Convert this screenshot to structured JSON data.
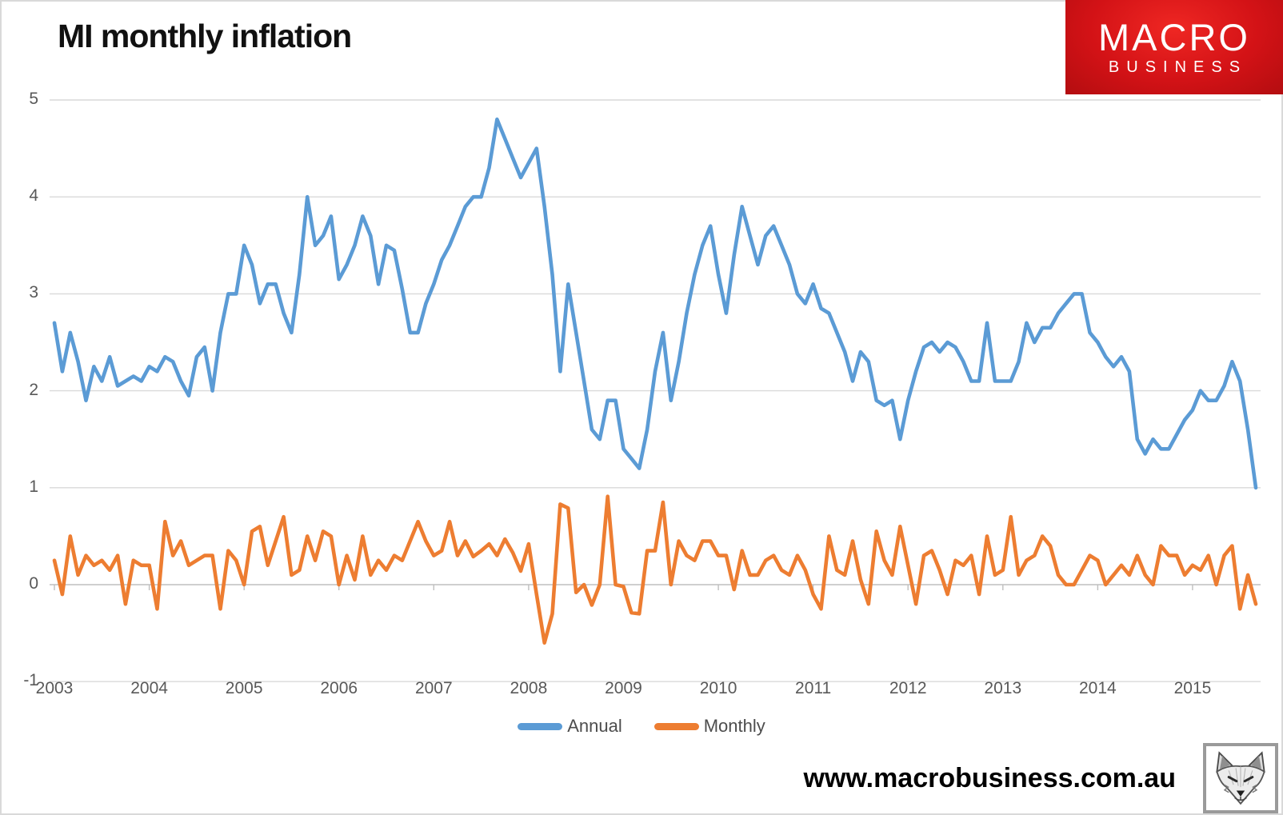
{
  "header": {
    "title": "MI monthly inflation",
    "logo": {
      "line1": "MACRO",
      "line2": "BUSINESS",
      "bg_color": "#d31216",
      "text_color": "#ffffff"
    }
  },
  "footer": {
    "url": "www.macrobusiness.com.au"
  },
  "legend": {
    "items": [
      "Annual",
      "Monthly"
    ]
  },
  "chart_data": {
    "type": "line",
    "title": "MI monthly inflation",
    "xlabel": "",
    "ylabel": "",
    "x_start": "2003-01",
    "x_end": "2015-09",
    "x_frequency": "monthly",
    "x_tick_labels": [
      "2003",
      "2004",
      "2005",
      "2006",
      "2007",
      "2008",
      "2009",
      "2010",
      "2011",
      "2012",
      "2013",
      "2014",
      "2015"
    ],
    "y_ticks": [
      5,
      4,
      3,
      2,
      1,
      0,
      -1
    ],
    "ylim": [
      -1,
      5
    ],
    "grid": true,
    "gridline_color": "#d9d9d9",
    "axis_color": "#bfbfbf",
    "label_color": "#595959",
    "legend_position": "bottom",
    "series": [
      {
        "name": "Annual",
        "color": "#5B9BD5",
        "values": [
          2.7,
          2.2,
          2.6,
          2.3,
          1.9,
          2.25,
          2.1,
          2.35,
          2.05,
          2.1,
          2.15,
          2.1,
          2.25,
          2.2,
          2.35,
          2.3,
          2.1,
          1.95,
          2.35,
          2.45,
          2.0,
          2.6,
          3.0,
          3.0,
          3.5,
          3.3,
          2.9,
          3.1,
          3.1,
          2.8,
          2.6,
          3.2,
          4.0,
          3.5,
          3.6,
          3.8,
          3.15,
          3.3,
          3.5,
          3.8,
          3.6,
          3.1,
          3.5,
          3.45,
          3.05,
          2.6,
          2.6,
          2.9,
          3.1,
          3.35,
          3.5,
          3.7,
          3.9,
          4.0,
          4.0,
          4.3,
          4.8,
          4.6,
          4.4,
          4.2,
          4.35,
          4.5,
          3.9,
          3.2,
          2.2,
          3.1,
          2.6,
          2.1,
          1.6,
          1.5,
          1.9,
          1.9,
          1.4,
          1.3,
          1.2,
          1.6,
          2.2,
          2.6,
          1.9,
          2.3,
          2.8,
          3.2,
          3.5,
          3.7,
          3.2,
          2.8,
          3.4,
          3.9,
          3.6,
          3.3,
          3.6,
          3.7,
          3.5,
          3.3,
          3.0,
          2.9,
          3.1,
          2.85,
          2.8,
          2.6,
          2.4,
          2.1,
          2.4,
          2.3,
          1.9,
          1.85,
          1.9,
          1.5,
          1.9,
          2.2,
          2.45,
          2.5,
          2.4,
          2.5,
          2.45,
          2.3,
          2.1,
          2.1,
          2.7,
          2.1,
          2.1,
          2.1,
          2.3,
          2.7,
          2.5,
          2.65,
          2.65,
          2.8,
          2.9,
          3.0,
          3.0,
          2.6,
          2.5,
          2.35,
          2.25,
          2.35,
          2.2,
          1.5,
          1.35,
          1.5,
          1.4,
          1.4,
          1.55,
          1.7,
          1.8,
          2.0,
          1.9,
          1.9,
          2.05,
          2.3,
          2.1,
          1.6,
          1.0
        ]
      },
      {
        "name": "Monthly",
        "color": "#ED7D31",
        "values": [
          0.25,
          -0.1,
          0.5,
          0.1,
          0.3,
          0.2,
          0.25,
          0.15,
          0.3,
          -0.2,
          0.25,
          0.2,
          0.2,
          -0.25,
          0.65,
          0.3,
          0.45,
          0.2,
          0.25,
          0.3,
          0.3,
          -0.25,
          0.35,
          0.25,
          0.0,
          0.55,
          0.6,
          0.2,
          0.45,
          0.7,
          0.1,
          0.15,
          0.5,
          0.25,
          0.55,
          0.5,
          0.0,
          0.3,
          0.05,
          0.5,
          0.1,
          0.25,
          0.15,
          0.3,
          0.25,
          0.45,
          0.65,
          0.45,
          0.3,
          0.35,
          0.65,
          0.3,
          0.45,
          0.29,
          0.35,
          0.42,
          0.3,
          0.47,
          0.33,
          0.14,
          0.42,
          -0.1,
          -0.6,
          -0.3,
          0.83,
          0.79,
          -0.08,
          0.0,
          -0.21,
          0.0,
          0.91,
          0.0,
          -0.02,
          -0.29,
          -0.3,
          0.35,
          0.35,
          0.85,
          0.0,
          0.45,
          0.3,
          0.25,
          0.45,
          0.45,
          0.3,
          0.3,
          -0.05,
          0.35,
          0.1,
          0.1,
          0.25,
          0.3,
          0.15,
          0.1,
          0.3,
          0.15,
          -0.1,
          -0.25,
          0.5,
          0.15,
          0.1,
          0.45,
          0.05,
          -0.2,
          0.55,
          0.25,
          0.1,
          0.6,
          0.2,
          -0.2,
          0.3,
          0.35,
          0.15,
          -0.1,
          0.25,
          0.2,
          0.3,
          -0.1,
          0.5,
          0.1,
          0.15,
          0.7,
          0.1,
          0.25,
          0.3,
          0.5,
          0.4,
          0.1,
          0.0,
          0.0,
          0.15,
          0.3,
          0.25,
          0.0,
          0.1,
          0.2,
          0.1,
          0.3,
          0.1,
          0.0,
          0.4,
          0.3,
          0.3,
          0.1,
          0.2,
          0.15,
          0.3,
          0.0,
          0.3,
          0.4,
          -0.25,
          0.1,
          -0.2
        ]
      }
    ]
  }
}
